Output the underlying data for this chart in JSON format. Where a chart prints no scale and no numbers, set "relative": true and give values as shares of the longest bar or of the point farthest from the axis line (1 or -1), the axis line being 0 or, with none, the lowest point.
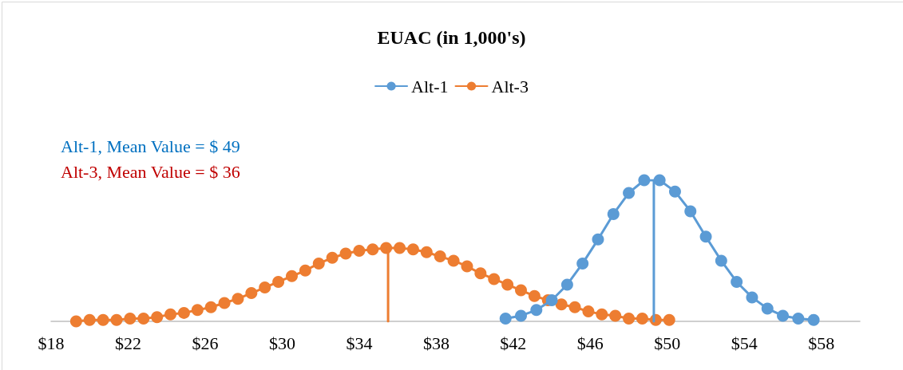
{
  "chart_data": {
    "type": "line",
    "title": "EUAC (in 1,000's)",
    "relative": true,
    "xlim": [
      18,
      60
    ],
    "xticks": [
      {
        "value": 18,
        "label": "$18"
      },
      {
        "value": 22,
        "label": "$22"
      },
      {
        "value": 26,
        "label": "$26"
      },
      {
        "value": 30,
        "label": "$30"
      },
      {
        "value": 34,
        "label": "$34"
      },
      {
        "value": 38,
        "label": "$38"
      },
      {
        "value": 42,
        "label": "$42"
      },
      {
        "value": 46,
        "label": "$46"
      },
      {
        "value": 50,
        "label": "$50"
      },
      {
        "value": 54,
        "label": "$54"
      },
      {
        "value": 58,
        "label": "$58"
      }
    ],
    "series": [
      {
        "name": "Alt-1",
        "color": "#5b9bd5",
        "x": [
          41.6,
          42.4,
          43.2,
          44.0,
          44.8,
          45.6,
          46.4,
          47.2,
          48.0,
          48.8,
          49.6,
          50.4,
          51.2,
          52.0,
          52.8,
          53.6,
          54.4,
          55.2,
          56.0,
          56.8,
          57.6
        ],
        "values": [
          0.02,
          0.04,
          0.08,
          0.15,
          0.26,
          0.41,
          0.58,
          0.76,
          0.91,
          1.0,
          1.0,
          0.92,
          0.78,
          0.6,
          0.43,
          0.28,
          0.17,
          0.09,
          0.04,
          0.02,
          0.01
        ]
      },
      {
        "name": "Alt-3",
        "color": "#ed7d31",
        "x": [
          19.3,
          20.0,
          20.7,
          21.4,
          22.1,
          22.8,
          23.5,
          24.2,
          24.9,
          25.6,
          26.3,
          27.0,
          27.7,
          28.4,
          29.1,
          29.8,
          30.5,
          31.2,
          31.9,
          32.6,
          33.3,
          34.0,
          34.7,
          35.4,
          36.1,
          36.8,
          37.5,
          38.2,
          38.9,
          39.6,
          40.3,
          41.0,
          41.7,
          42.4,
          43.1,
          43.8,
          44.5,
          45.2,
          45.9,
          46.6,
          47.3,
          48.0,
          48.7,
          49.4,
          50.1
        ],
        "values": [
          0.0,
          0.01,
          0.01,
          0.01,
          0.02,
          0.02,
          0.03,
          0.05,
          0.06,
          0.08,
          0.1,
          0.13,
          0.16,
          0.2,
          0.24,
          0.28,
          0.32,
          0.36,
          0.41,
          0.45,
          0.48,
          0.5,
          0.51,
          0.52,
          0.52,
          0.51,
          0.49,
          0.46,
          0.43,
          0.39,
          0.34,
          0.3,
          0.26,
          0.22,
          0.18,
          0.15,
          0.12,
          0.1,
          0.07,
          0.05,
          0.04,
          0.02,
          0.02,
          0.01,
          0.01
        ]
      },
      {
        "color": "#5b9bd5",
        "marker": "none",
        "x": [
          49.3,
          49.3
        ],
        "values": [
          0,
          1.0
        ]
      },
      {
        "color": "#ed7d31",
        "marker": "none",
        "x": [
          35.5,
          35.5
        ],
        "values": [
          0,
          0.52
        ]
      }
    ],
    "annotations": [
      "Alt-1, Mean Value = $ 49",
      "Alt-3, Mean Value = $ 36"
    ],
    "marker": "circle",
    "line_style": "solid",
    "grid": false,
    "legend": "top"
  }
}
